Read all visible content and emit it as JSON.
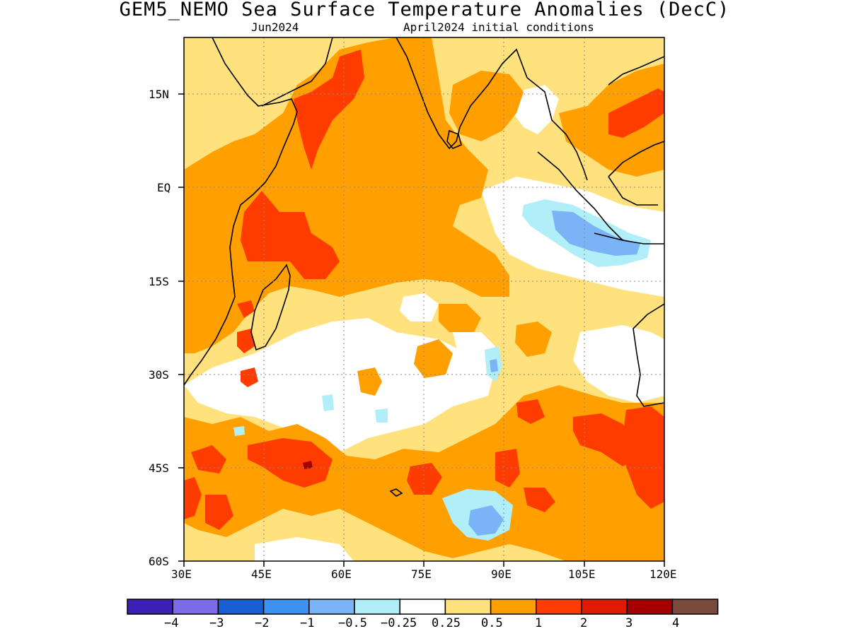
{
  "title": "GEM5_NEMO Sea Surface Temperature Anomalies (DecC)",
  "subtitle_left": "Jun2024",
  "subtitle_right": "April2024 initial conditions",
  "lat_labels": [
    "15N",
    "EQ",
    "15S",
    "30S",
    "45S",
    "60S"
  ],
  "lon_labels": [
    "30E",
    "45E",
    "60E",
    "75E",
    "90E",
    "105E",
    "120E"
  ],
  "colorbar": {
    "labels": [
      "−4",
      "−3",
      "−2",
      "−1",
      "−0.5",
      "−0.25",
      "0.25",
      "0.5",
      "1",
      "2",
      "3",
      "4"
    ],
    "colors": [
      "#3c1fb4",
      "#7d6be8",
      "#1a5fd0",
      "#3d91f0",
      "#7ab4f6",
      "#b0eef8",
      "#ffffff",
      "#ffe27e",
      "#ffa000",
      "#ff3c00",
      "#e01a00",
      "#a50000",
      "#7a4a3c"
    ]
  }
}
